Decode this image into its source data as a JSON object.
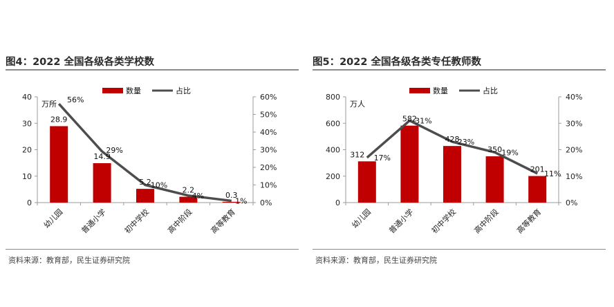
{
  "colors": {
    "bar": "#c00000",
    "line": "#4d4d4d",
    "axis": "#9a9a9a",
    "rule": "#8a8a8a"
  },
  "chart_data": [
    {
      "type": "bar",
      "title": "图4：2022 全国各级各类学校数",
      "unit_label": "万所",
      "categories": [
        "幼儿园",
        "普通小学",
        "初中学校",
        "高中阶段",
        "高等教育"
      ],
      "series": [
        {
          "name": "数量",
          "type": "bar",
          "axis": "left",
          "values": [
            28.9,
            14.9,
            5.2,
            2.2,
            0.3
          ],
          "labels": [
            "28.9",
            "14.9",
            "5.2",
            "2.2",
            "0.3"
          ]
        },
        {
          "name": "占比",
          "type": "line",
          "axis": "right",
          "values": [
            56,
            29,
            10,
            4,
            1
          ],
          "labels": [
            "56%",
            "29%",
            "10%",
            "4%",
            "1%"
          ]
        }
      ],
      "y_left": {
        "ylim": [
          0,
          40
        ],
        "ticks": [
          "0",
          "10",
          "20",
          "30",
          "40"
        ]
      },
      "y_right": {
        "ylim": [
          0,
          60
        ],
        "ticks": [
          "0%",
          "10%",
          "20%",
          "30%",
          "40%",
          "50%",
          "60%"
        ]
      },
      "legend_position": "top-center",
      "grid": false,
      "source": "资料来源：教育部，民生证券研究院"
    },
    {
      "type": "bar",
      "title": "图5：2022 全国各级各类专任教师数",
      "unit_label": "万人",
      "categories": [
        "幼儿园",
        "普通小学",
        "初中学校",
        "高中阶段",
        "高等教育"
      ],
      "series": [
        {
          "name": "数量",
          "type": "bar",
          "axis": "left",
          "values": [
            312,
            582,
            428,
            350,
            201
          ],
          "labels": [
            "312",
            "582",
            "428",
            "350",
            "201"
          ]
        },
        {
          "name": "占比",
          "type": "line",
          "axis": "right",
          "values": [
            17,
            31,
            23,
            19,
            11
          ],
          "labels": [
            "17%",
            "31%",
            "23%",
            "19%",
            "11%"
          ]
        }
      ],
      "y_left": {
        "ylim": [
          0,
          800
        ],
        "ticks": [
          "0",
          "200",
          "400",
          "600",
          "800"
        ]
      },
      "y_right": {
        "ylim": [
          0,
          40
        ],
        "ticks": [
          "0%",
          "10%",
          "20%",
          "30%",
          "40%"
        ]
      },
      "legend_position": "top-center",
      "grid": false,
      "source": "资料来源：教育部，民生证券研究院"
    }
  ]
}
